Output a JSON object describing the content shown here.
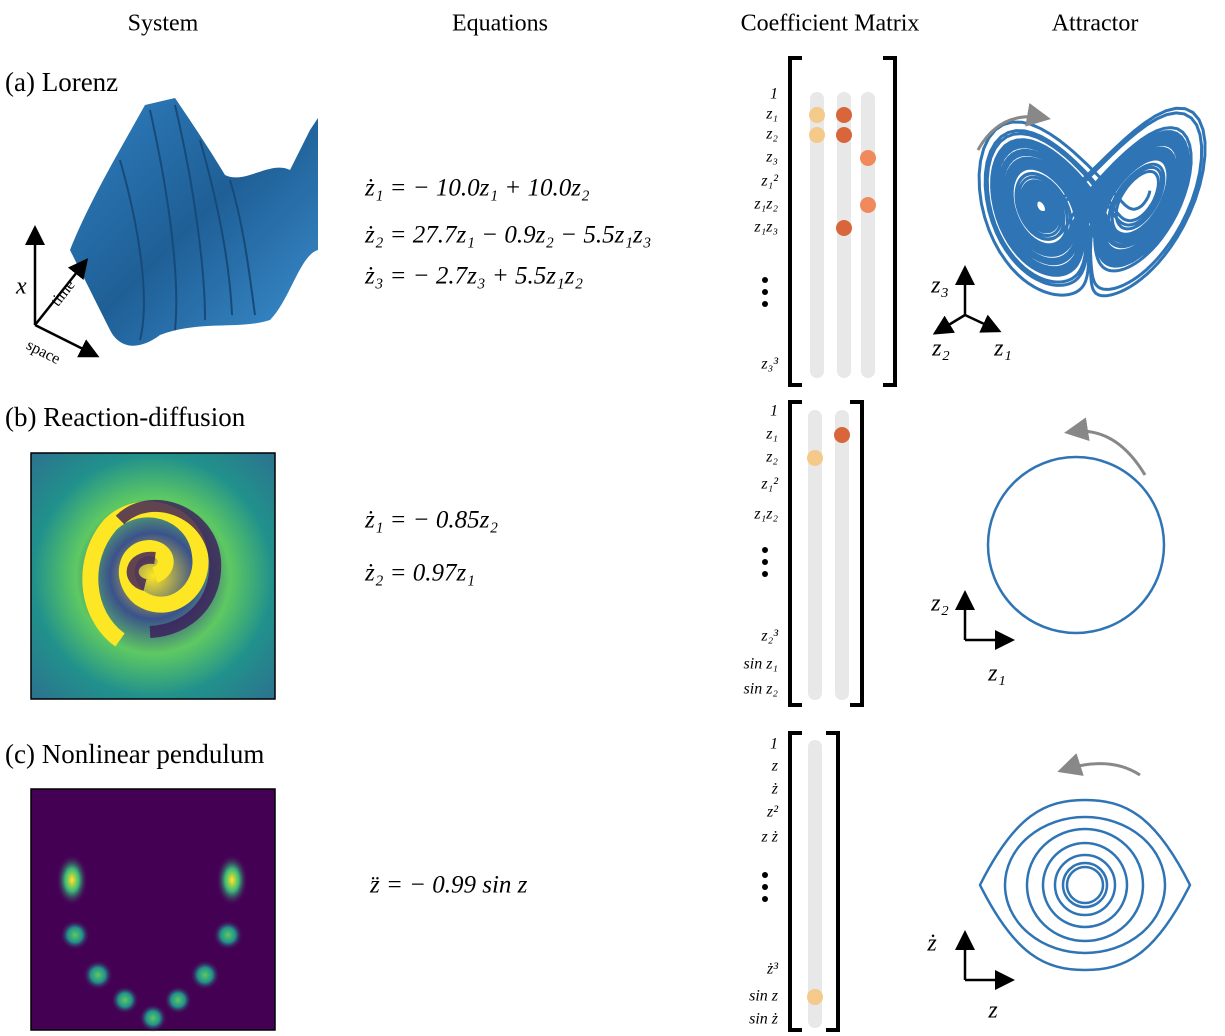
{
  "headers": [
    "System",
    "Equations",
    "Coefficient Matrix",
    "Attractor"
  ],
  "surface_axes": [
    "x",
    "time",
    "space"
  ],
  "rows": [
    {
      "label": "(a) Lorenz",
      "equations": [
        "ż₁ = − 10.0z₁ + 10.0z₂",
        "ż₂ = 27.7z₁ − 0.9z₂ − 5.5z₁z₃",
        "ż₃ = − 2.7z₃ + 5.5z₁z₂"
      ],
      "matrix_labels": [
        "1",
        "z₁",
        "z₂",
        "z₃",
        "z₁²",
        "z₁z₂",
        "z₁z₃",
        "z₃³"
      ],
      "axes": [
        "z₃",
        "z₂",
        "z₁"
      ]
    },
    {
      "label": "(b) Reaction-diffusion",
      "equations": [
        "ż₁ = − 0.85z₂",
        "ż₂ = 0.97z₁"
      ],
      "matrix_labels": [
        "1",
        "z₁",
        "z₂",
        "z₁²",
        "z₁z₂",
        "z₂³",
        "sin z₁",
        "sin z₂"
      ],
      "axes": [
        "z₂",
        "z₁"
      ]
    },
    {
      "label": "(c) Nonlinear pendulum",
      "equations": [
        "z̈ = − 0.99 sin z"
      ],
      "matrix_labels": [
        "1",
        "z",
        "ż",
        "z²",
        "z ż",
        "ż³",
        "sin z",
        "sin ż"
      ],
      "axes": [
        "ż",
        "z"
      ]
    }
  ]
}
